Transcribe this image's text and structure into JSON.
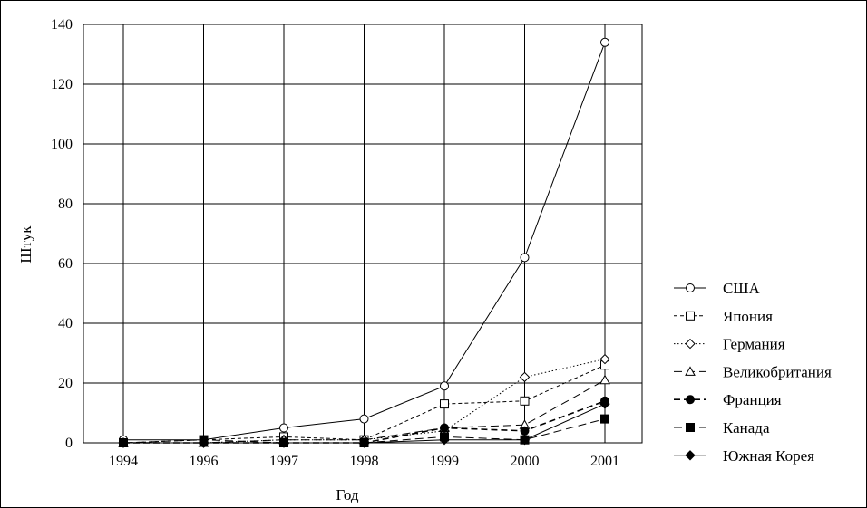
{
  "chart_data": {
    "type": "line",
    "title": "",
    "xlabel": "Год",
    "ylabel": "Штук",
    "categories": [
      "1994",
      "1996",
      "1997",
      "1998",
      "1999",
      "2000",
      "2001"
    ],
    "ylim": [
      0,
      140
    ],
    "yticks": [
      0,
      20,
      40,
      60,
      80,
      100,
      120,
      140
    ],
    "grid": true,
    "legend_position": "right",
    "series": [
      {
        "name": "США",
        "marker": "open-circle",
        "dash": "solid",
        "values": [
          1,
          1,
          5,
          8,
          19,
          62,
          134
        ]
      },
      {
        "name": "Япония",
        "marker": "open-square",
        "dash": "dash",
        "values": [
          0,
          1,
          2,
          1,
          13,
          14,
          26
        ]
      },
      {
        "name": "Германия",
        "marker": "open-diamond",
        "dash": "dot",
        "values": [
          0,
          0,
          1,
          1,
          4,
          22,
          28
        ]
      },
      {
        "name": "Великобритания",
        "marker": "open-triangle",
        "dash": "longdash",
        "values": [
          0,
          0,
          1,
          1,
          5,
          6,
          21
        ]
      },
      {
        "name": "Франция",
        "marker": "filled-circle",
        "dash": "heavydash",
        "values": [
          0,
          0,
          0,
          0,
          5,
          4,
          14
        ]
      },
      {
        "name": "Канада",
        "marker": "filled-square",
        "dash": "longdash",
        "values": [
          0,
          1,
          0,
          0,
          2,
          1,
          8
        ]
      },
      {
        "name": "Южная Корея",
        "marker": "filled-diamond",
        "dash": "solid",
        "values": [
          0,
          0,
          0,
          0,
          1,
          1,
          13
        ]
      }
    ]
  }
}
